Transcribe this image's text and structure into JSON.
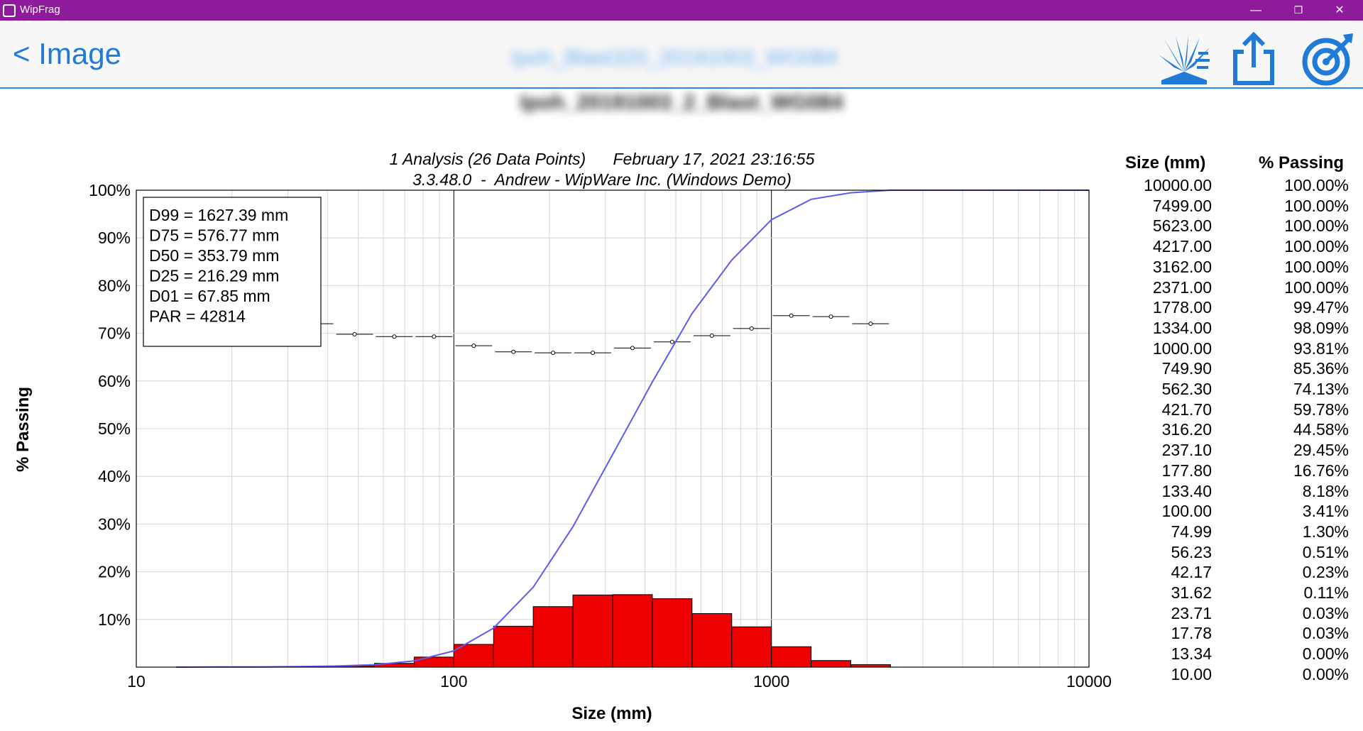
{
  "window": {
    "title": "WipFrag",
    "controls": [
      "—",
      "❐",
      "✕"
    ]
  },
  "header": {
    "back_label": "< Image",
    "title": "Ipoh_Blast320_20191003_WG084",
    "icons": [
      "blast-icon",
      "share-icon",
      "target-icon"
    ]
  },
  "subheader": {
    "title": "Ipoh_20191003_2_Blast_WG084"
  },
  "chart_data": {
    "type": "line",
    "title": "1 Analysis (26 Data Points)      February 17, 2021 23:16:55",
    "subtitle": "3.3.48.0  -  Andrew - WipWare Inc. (Windows Demo)",
    "xlabel": "Size (mm)",
    "ylabel": "% Passing",
    "xscale": "log",
    "xlim": [
      10,
      10000
    ],
    "ylim": [
      0,
      100
    ],
    "x_ticks": [
      "10",
      "100",
      "1000",
      "10000"
    ],
    "y_ticks": [
      "10%",
      "20%",
      "30%",
      "40%",
      "50%",
      "60%",
      "70%",
      "80%",
      "90%",
      "100%"
    ],
    "grid": true,
    "stats_box": [
      "D99 = 1627.39 mm",
      "D75 = 576.77 mm",
      "D50 = 353.79 mm",
      "D25 = 216.29 mm",
      "D01 = 67.85 mm",
      "PAR = 42814"
    ],
    "passing_curve": {
      "color": "#5b5bef",
      "x": [
        13.34,
        17.78,
        23.71,
        31.62,
        42.17,
        56.23,
        74.99,
        100,
        133.4,
        177.8,
        237.1,
        316.2,
        421.7,
        562.3,
        749.9,
        1000,
        1334,
        1778,
        2371,
        3162,
        4217,
        5623,
        7499,
        10000
      ],
      "y": [
        0,
        0.03,
        0.03,
        0.11,
        0.23,
        0.51,
        1.3,
        3.41,
        8.18,
        16.76,
        29.45,
        44.58,
        59.78,
        74.13,
        85.36,
        93.81,
        98.09,
        99.47,
        100,
        100,
        100,
        100,
        100,
        100
      ]
    },
    "histogram": {
      "color": "#ee0000",
      "bins": [
        {
          "x0": 23.71,
          "x1": 31.62,
          "y": 0.08
        },
        {
          "x0": 31.62,
          "x1": 42.17,
          "y": 0.12
        },
        {
          "x0": 42.17,
          "x1": 56.23,
          "y": 0.28
        },
        {
          "x0": 56.23,
          "x1": 74.99,
          "y": 0.79
        },
        {
          "x0": 74.99,
          "x1": 100,
          "y": 2.11
        },
        {
          "x0": 100,
          "x1": 133.4,
          "y": 4.77
        },
        {
          "x0": 133.4,
          "x1": 177.8,
          "y": 8.58
        },
        {
          "x0": 177.8,
          "x1": 237.1,
          "y": 12.69
        },
        {
          "x0": 237.1,
          "x1": 316.2,
          "y": 15.13
        },
        {
          "x0": 316.2,
          "x1": 421.7,
          "y": 15.2
        },
        {
          "x0": 421.7,
          "x1": 562.3,
          "y": 14.35
        },
        {
          "x0": 562.3,
          "x1": 749.9,
          "y": 11.23
        },
        {
          "x0": 749.9,
          "x1": 1000,
          "y": 8.45
        },
        {
          "x0": 1000,
          "x1": 1334,
          "y": 4.28
        },
        {
          "x0": 1334,
          "x1": 1778,
          "y": 1.38
        },
        {
          "x0": 1778,
          "x1": 2371,
          "y": 0.53
        }
      ]
    },
    "error_markers": {
      "color": "#000000",
      "points": [
        {
          "x0": 31.62,
          "x1": 42.17,
          "y": 72.0
        },
        {
          "x0": 42.17,
          "x1": 56.23,
          "y": 69.8
        },
        {
          "x0": 56.23,
          "x1": 74.99,
          "y": 69.3
        },
        {
          "x0": 74.99,
          "x1": 100,
          "y": 69.3
        },
        {
          "x0": 100,
          "x1": 133.4,
          "y": 67.4
        },
        {
          "x0": 133.4,
          "x1": 177.8,
          "y": 66.1
        },
        {
          "x0": 177.8,
          "x1": 237.1,
          "y": 65.9
        },
        {
          "x0": 237.1,
          "x1": 316.2,
          "y": 65.9
        },
        {
          "x0": 316.2,
          "x1": 421.7,
          "y": 66.9
        },
        {
          "x0": 421.7,
          "x1": 562.3,
          "y": 68.2
        },
        {
          "x0": 562.3,
          "x1": 749.9,
          "y": 69.5
        },
        {
          "x0": 749.9,
          "x1": 1000,
          "y": 71.0
        },
        {
          "x0": 1000,
          "x1": 1334,
          "y": 73.7
        },
        {
          "x0": 1334,
          "x1": 1778,
          "y": 73.5
        },
        {
          "x0": 1778,
          "x1": 2371,
          "y": 72.0
        }
      ]
    }
  },
  "table": {
    "headers": [
      "Size (mm)",
      "% Passing"
    ],
    "rows": [
      [
        "10000.00",
        "100.00%"
      ],
      [
        "7499.00",
        "100.00%"
      ],
      [
        "5623.00",
        "100.00%"
      ],
      [
        "4217.00",
        "100.00%"
      ],
      [
        "3162.00",
        "100.00%"
      ],
      [
        "2371.00",
        "100.00%"
      ],
      [
        "1778.00",
        "99.47%"
      ],
      [
        "1334.00",
        "98.09%"
      ],
      [
        "1000.00",
        "93.81%"
      ],
      [
        "749.90",
        "85.36%"
      ],
      [
        "562.30",
        "74.13%"
      ],
      [
        "421.70",
        "59.78%"
      ],
      [
        "316.20",
        "44.58%"
      ],
      [
        "237.10",
        "29.45%"
      ],
      [
        "177.80",
        "16.76%"
      ],
      [
        "133.40",
        "8.18%"
      ],
      [
        "100.00",
        "3.41%"
      ],
      [
        "74.99",
        "1.30%"
      ],
      [
        "56.23",
        "0.51%"
      ],
      [
        "42.17",
        "0.23%"
      ],
      [
        "31.62",
        "0.11%"
      ],
      [
        "23.71",
        "0.03%"
      ],
      [
        "17.78",
        "0.03%"
      ],
      [
        "13.34",
        "0.00%"
      ],
      [
        "10.00",
        "0.00%"
      ]
    ]
  }
}
